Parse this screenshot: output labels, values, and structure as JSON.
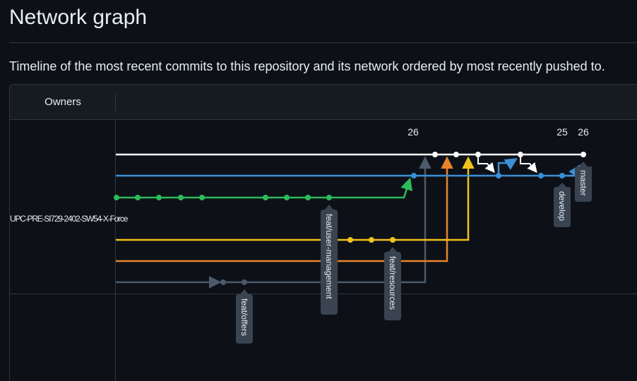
{
  "page": {
    "title": "Network graph",
    "description": "Timeline of the most recent commits to this repository and its network ordered by most recently pushed to."
  },
  "graph": {
    "owners_header": "Owners",
    "owner_name": "UPC-PRE-SI729-2402-SW54-X-Force",
    "date_labels": [
      "26",
      "25",
      "26"
    ],
    "branch_tags": [
      "master",
      "develop",
      "feat/user-management",
      "feat/resources",
      "feat/offers"
    ],
    "colors": {
      "master": "#ffffff",
      "develop": "#3b8fd6",
      "feat_user_management": "#2dba5a",
      "feat_resources": "#f2c21b",
      "orange": "#e8832c",
      "feat_offers": "#3d4a5c",
      "tag_bg": "#3a4350"
    }
  }
}
